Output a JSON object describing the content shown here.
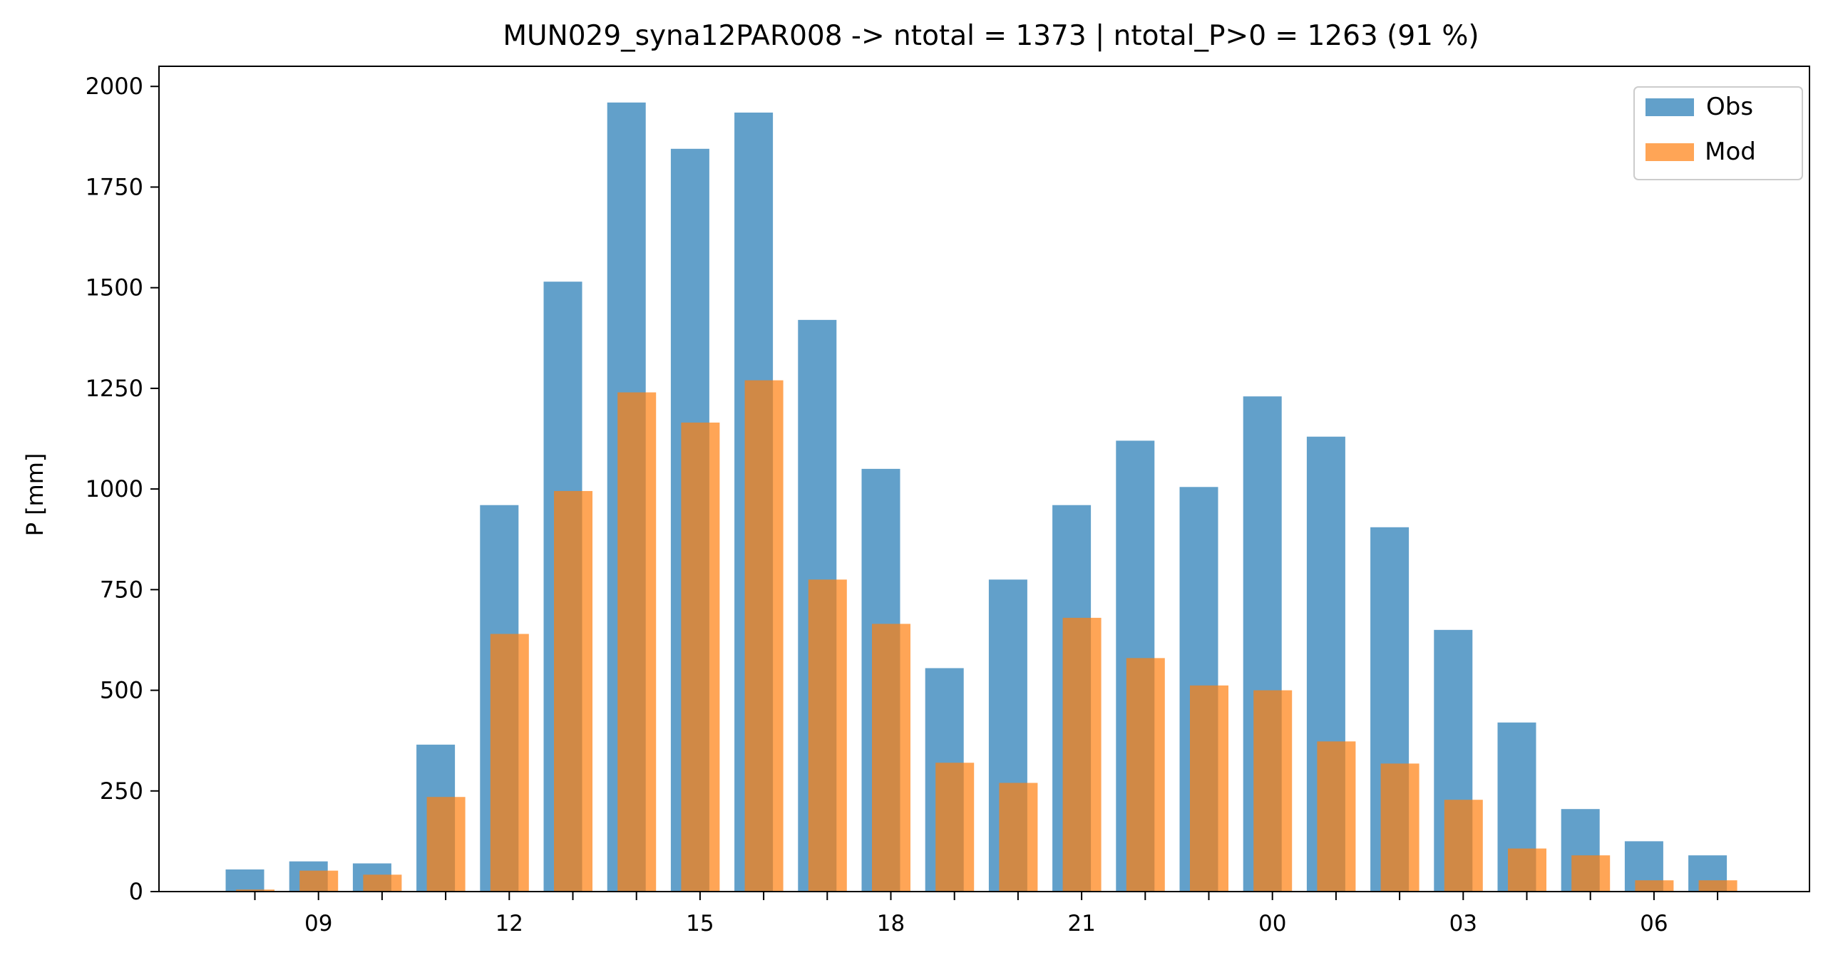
{
  "chart_data": {
    "type": "bar",
    "title": "MUN029_syna12PAR008 -> ntotal = 1373 | ntotal_P>0 = 1263 (91 %)",
    "xlabel": "",
    "ylabel": "P [mm]",
    "ylim": [
      0,
      2050
    ],
    "yticks": [
      0,
      250,
      500,
      750,
      1000,
      1250,
      1500,
      1750,
      2000
    ],
    "categories": [
      "08",
      "09",
      "10",
      "11",
      "12",
      "13",
      "14",
      "15",
      "16",
      "17",
      "18",
      "19",
      "20",
      "21",
      "22",
      "23",
      "00",
      "01",
      "02",
      "03",
      "04",
      "05",
      "06",
      "07"
    ],
    "x_tick_labels": [
      "09",
      "12",
      "15",
      "18",
      "21",
      "00",
      "03",
      "06"
    ],
    "series": [
      {
        "name": "Obs",
        "color": "#1f77b4",
        "values": [
          55,
          75,
          70,
          365,
          960,
          1515,
          1960,
          1845,
          1935,
          1420,
          1050,
          555,
          775,
          960,
          1120,
          1005,
          1230,
          1130,
          905,
          650,
          420,
          205,
          125,
          90
        ]
      },
      {
        "name": "Mod",
        "color": "#ff7f0e",
        "values": [
          5,
          52,
          42,
          235,
          640,
          995,
          1240,
          1165,
          1270,
          775,
          665,
          320,
          270,
          680,
          580,
          512,
          500,
          373,
          318,
          228,
          107,
          90,
          28,
          28
        ]
      }
    ],
    "grid": false,
    "legend_placement": "top-right"
  }
}
